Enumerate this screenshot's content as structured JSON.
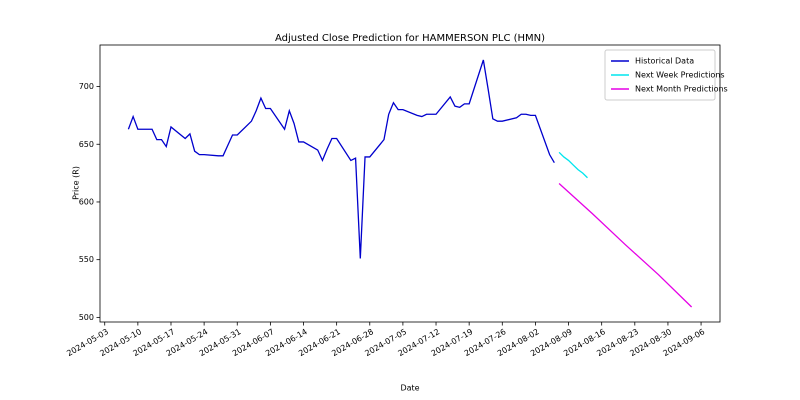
{
  "chart_data": {
    "type": "line",
    "title": "Adjusted Close Prediction for HAMMERSON PLC (HMN)",
    "x_label": "Date",
    "y_label": "Price (R)",
    "xlim": [
      "2024-05-02",
      "2024-09-10"
    ],
    "xticks": [
      "2024-05-03",
      "2024-05-10",
      "2024-05-17",
      "2024-05-24",
      "2024-05-31",
      "2024-06-07",
      "2024-06-14",
      "2024-06-21",
      "2024-06-28",
      "2024-07-05",
      "2024-07-12",
      "2024-07-19",
      "2024-07-26",
      "2024-08-02",
      "2024-08-09",
      "2024-08-16",
      "2024-08-23",
      "2024-08-30",
      "2024-09-06"
    ],
    "ylim": [
      496,
      736
    ],
    "yticks": [
      500,
      550,
      600,
      650,
      700
    ],
    "legend": "upper right",
    "series": [
      {
        "name": "Historical Data",
        "color": "#0000cd",
        "x": [
          "2024-05-08",
          "2024-05-09",
          "2024-05-10",
          "2024-05-13",
          "2024-05-14",
          "2024-05-15",
          "2024-05-16",
          "2024-05-17",
          "2024-05-20",
          "2024-05-21",
          "2024-05-22",
          "2024-05-23",
          "2024-05-24",
          "2024-05-27",
          "2024-05-28",
          "2024-05-29",
          "2024-05-30",
          "2024-05-31",
          "2024-06-03",
          "2024-06-04",
          "2024-06-05",
          "2024-06-06",
          "2024-06-07",
          "2024-06-10",
          "2024-06-11",
          "2024-06-12",
          "2024-06-13",
          "2024-06-14",
          "2024-06-17",
          "2024-06-18",
          "2024-06-19",
          "2024-06-20",
          "2024-06-21",
          "2024-06-24",
          "2024-06-25",
          "2024-06-26",
          "2024-06-27",
          "2024-06-28",
          "2024-07-01",
          "2024-07-02",
          "2024-07-03",
          "2024-07-04",
          "2024-07-05",
          "2024-07-08",
          "2024-07-09",
          "2024-07-10",
          "2024-07-11",
          "2024-07-12",
          "2024-07-15",
          "2024-07-16",
          "2024-07-17",
          "2024-07-18",
          "2024-07-19",
          "2024-07-22",
          "2024-07-23",
          "2024-07-24",
          "2024-07-25",
          "2024-07-26",
          "2024-07-29",
          "2024-07-30",
          "2024-07-31",
          "2024-08-01",
          "2024-08-02",
          "2024-08-05",
          "2024-08-06"
        ],
        "values": [
          663,
          674,
          663,
          663,
          654,
          654,
          648,
          665,
          655,
          659,
          644,
          641,
          641,
          640,
          640,
          649,
          658,
          658,
          670,
          679,
          690,
          681,
          681,
          663,
          679,
          668,
          652,
          652,
          645,
          636,
          646,
          655,
          655,
          636,
          638,
          551,
          639,
          639,
          654,
          676,
          686,
          680,
          680,
          675,
          674,
          676,
          676,
          676,
          691,
          683,
          682,
          685,
          685,
          723,
          698,
          672,
          670,
          670,
          673,
          676,
          676,
          675,
          675,
          641,
          634
        ]
      },
      {
        "name": "Next Week Predictions",
        "color": "#00e5ee",
        "x": [
          "2024-08-07",
          "2024-08-08",
          "2024-08-09",
          "2024-08-10",
          "2024-08-11",
          "2024-08-12",
          "2024-08-13"
        ],
        "values": [
          643,
          639,
          636,
          632,
          628,
          625,
          621
        ]
      },
      {
        "name": "Next Month Predictions",
        "color": "#e600e6",
        "x": [
          "2024-08-07",
          "2024-08-14",
          "2024-08-21",
          "2024-08-28",
          "2024-09-04"
        ],
        "values": [
          616,
          590,
          563,
          537,
          509
        ]
      }
    ]
  }
}
